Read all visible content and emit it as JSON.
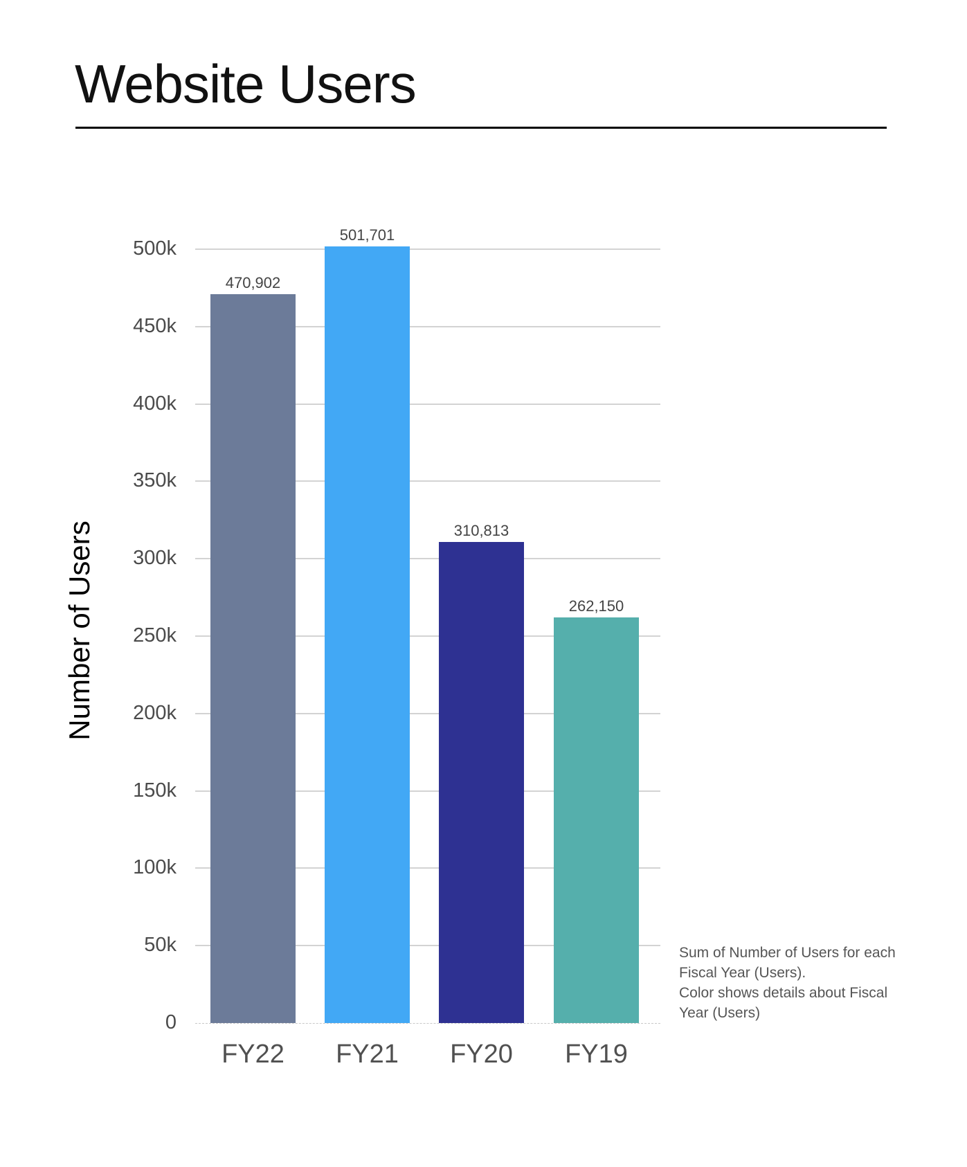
{
  "title": "Website Users",
  "chart_data": {
    "type": "bar",
    "title": "Website Users",
    "xlabel": "",
    "ylabel": "Number of Users",
    "categories": [
      "FY22",
      "FY21",
      "FY20",
      "FY19"
    ],
    "values": [
      470902,
      501701,
      310813,
      262150
    ],
    "value_labels": [
      "470,902",
      "501,701",
      "310,813",
      "262,150"
    ],
    "colors": [
      "#6c7b99",
      "#42a8f5",
      "#2e3192",
      "#55afac"
    ],
    "ylim": [
      0,
      500000
    ],
    "yticks": [
      0,
      50000,
      100000,
      150000,
      200000,
      250000,
      300000,
      350000,
      400000,
      450000,
      500000
    ],
    "ytick_labels": [
      "0",
      "50k",
      "100k",
      "150k",
      "200k",
      "250k",
      "300k",
      "350k",
      "400k",
      "450k",
      "500k"
    ],
    "grid": true,
    "legend": "none",
    "annotation": "Sum of Number of Users for each Fiscal Year (Users). Color shows details about Fiscal Year (Users)"
  },
  "note": {
    "line1": "Sum of Number of Users for each",
    "line2": "Fiscal Year (Users).",
    "line3": "Color shows details about Fiscal",
    "line4": "Year (Users)"
  }
}
